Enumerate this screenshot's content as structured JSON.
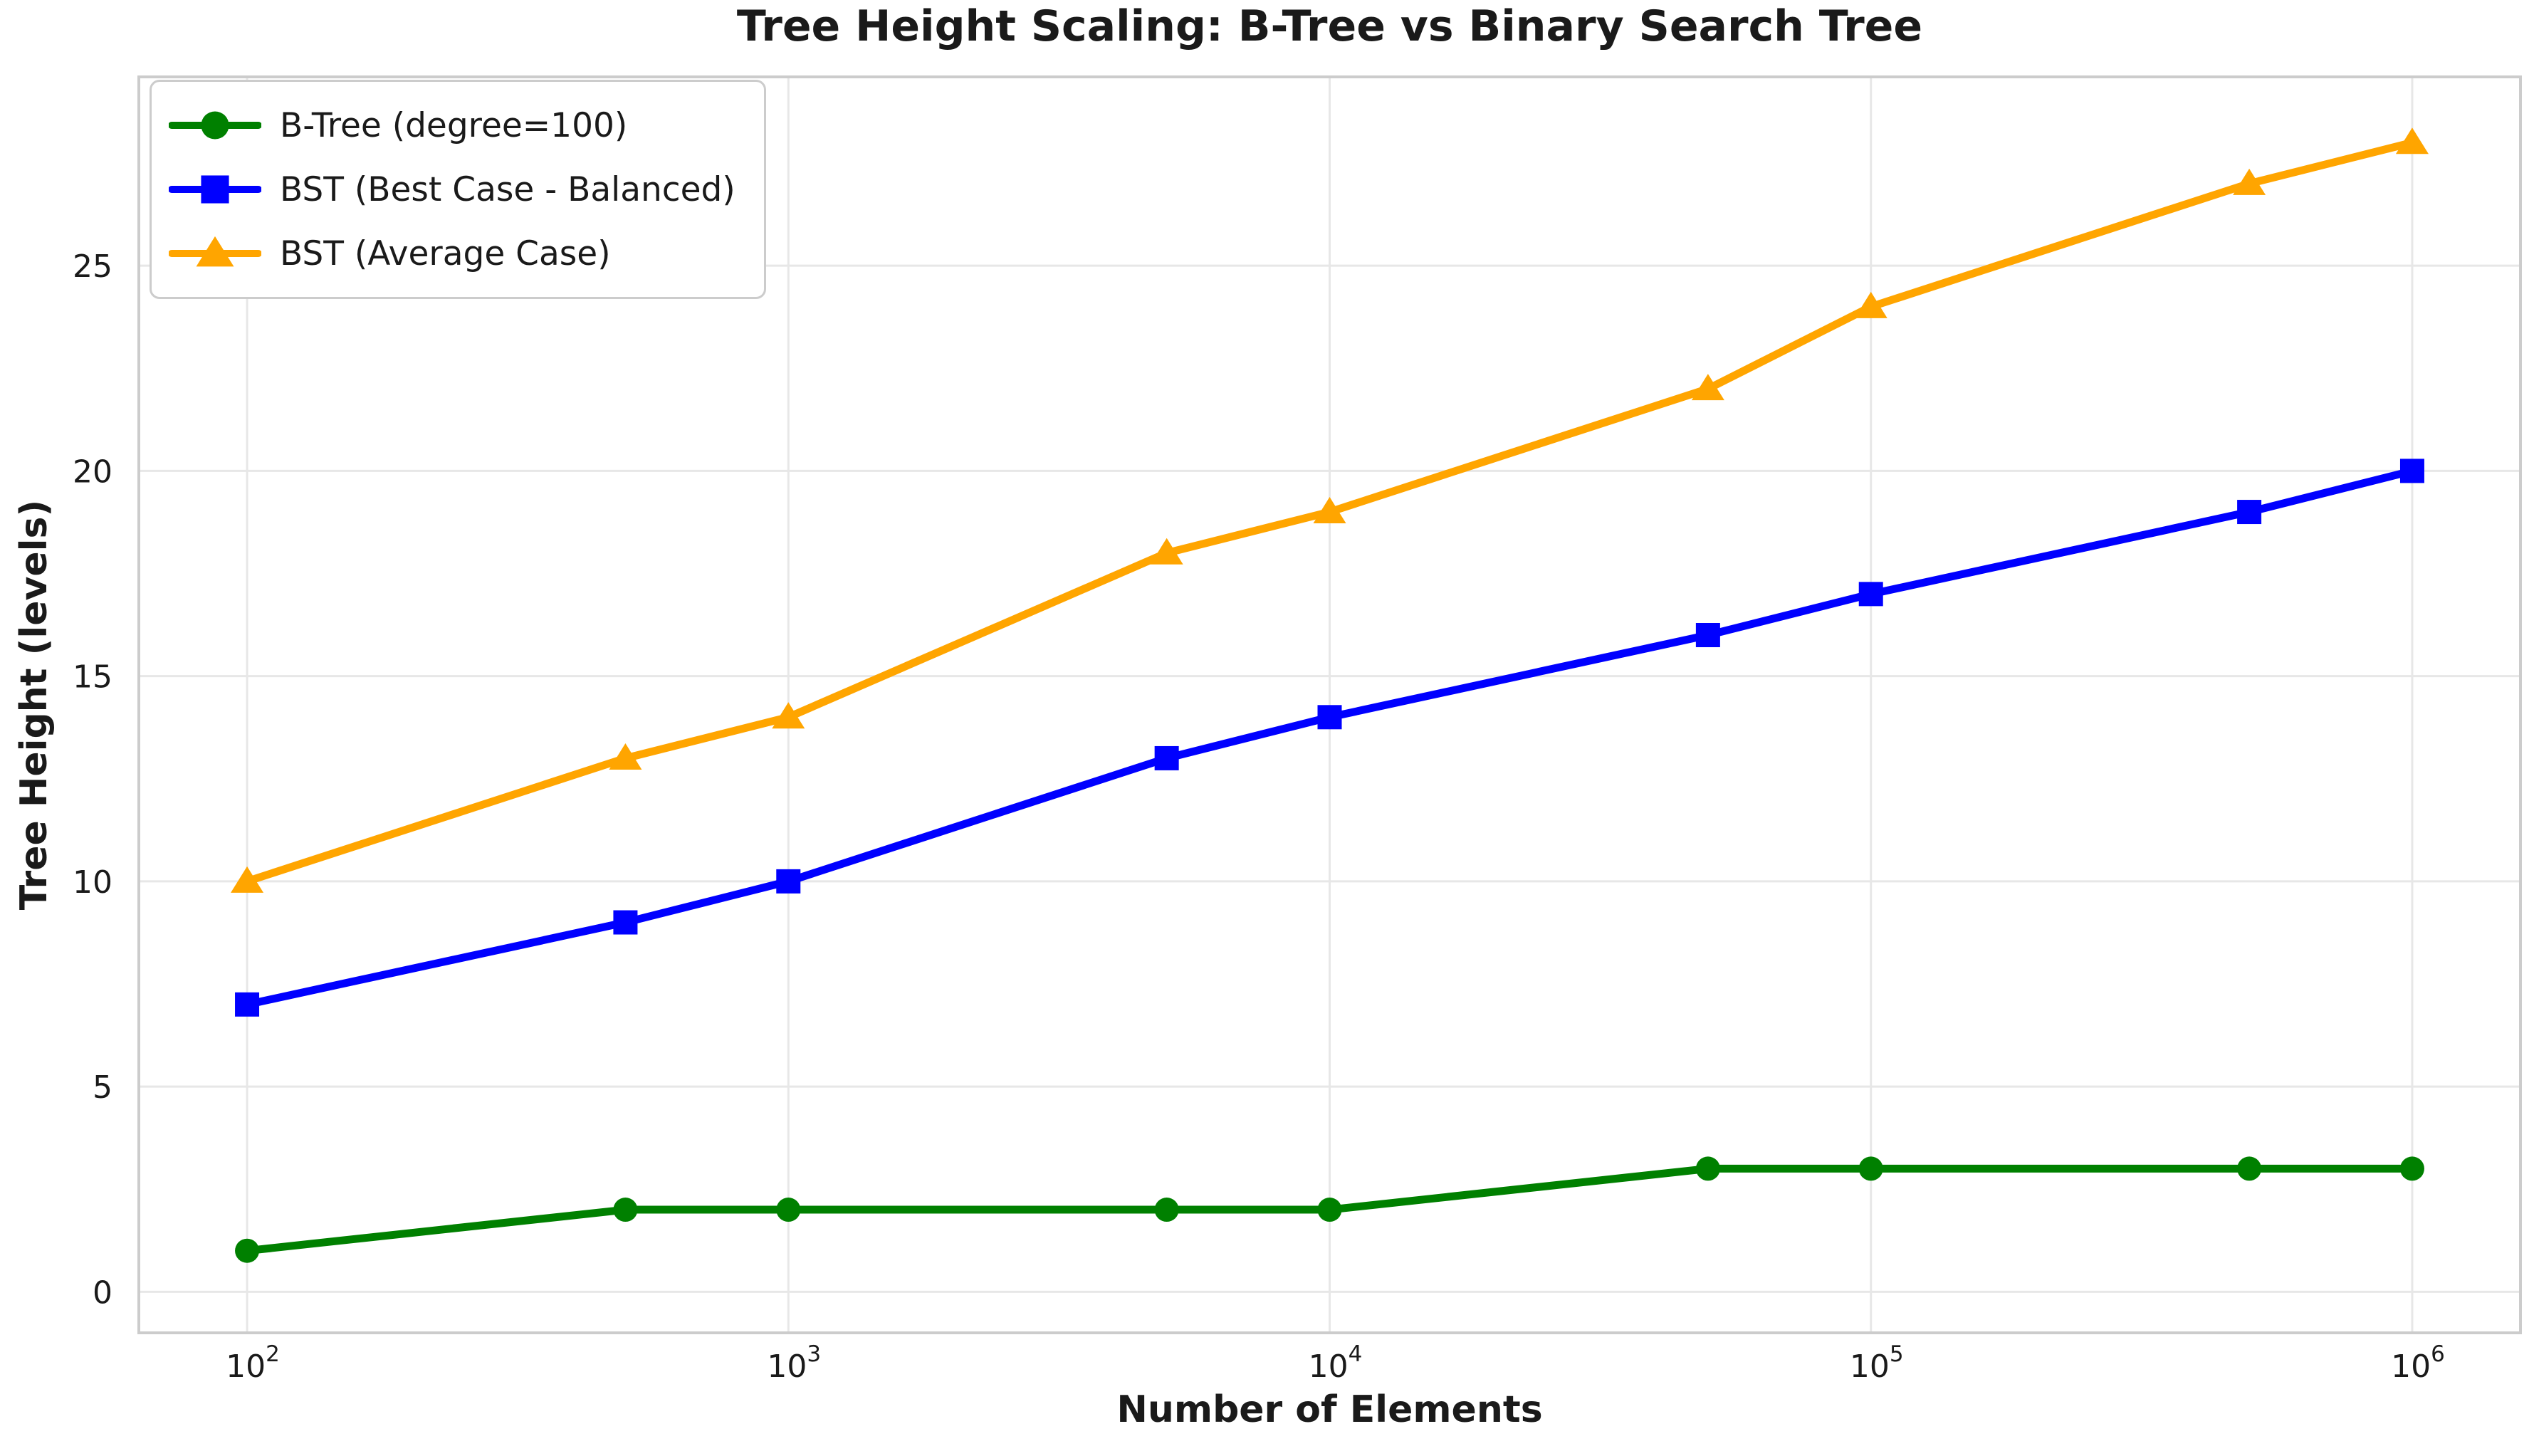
{
  "chart_data": {
    "type": "line",
    "title": "Tree Height Scaling: B-Tree vs Binary Search Tree",
    "xlabel": "Number of Elements",
    "ylabel": "Tree Height (levels)",
    "x_scale": "log",
    "x": [
      100,
      500,
      1000,
      5000,
      10000,
      50000,
      100000,
      500000,
      1000000
    ],
    "series": [
      {
        "name": "B-Tree (degree=100)",
        "marker": "circle",
        "color": "#008000",
        "values": [
          1,
          2,
          2,
          2,
          2,
          3,
          3,
          3,
          3
        ]
      },
      {
        "name": "BST (Best Case - Balanced)",
        "marker": "square",
        "color": "#0000ff",
        "values": [
          7,
          9,
          10,
          13,
          14,
          16,
          17,
          19,
          20
        ]
      },
      {
        "name": "BST (Average Case)",
        "marker": "triangle",
        "color": "#ffa500",
        "values": [
          10,
          13,
          14,
          18,
          19,
          22,
          24,
          27,
          28
        ]
      }
    ],
    "xtick_exponents": [
      2,
      3,
      4,
      5,
      6
    ],
    "xtick_base": "10",
    "yticks": [
      0,
      5,
      10,
      15,
      20,
      25
    ],
    "xlim_log10": [
      1.8,
      6.2
    ],
    "ylim": [
      -1,
      29.6
    ],
    "grid": true,
    "legend_position": "upper left",
    "colors": {
      "grid": "#e7e7e7",
      "spine": "#cccccc",
      "text": "#1a1a1a",
      "background": "#ffffff"
    }
  }
}
